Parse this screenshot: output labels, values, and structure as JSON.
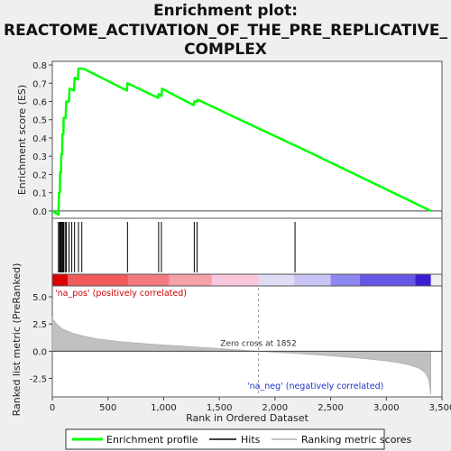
{
  "title_lines": [
    "Enrichment plot:",
    "REACTOME_ACTIVATION_OF_THE_PRE_REPLICATIVE_",
    "COMPLEX"
  ],
  "chart_data": {
    "type": "line",
    "x_max": 3400,
    "xlabel": "Rank in Ordered Dataset",
    "xticks": [
      0,
      500,
      1000,
      1500,
      2000,
      2500,
      3000,
      3500
    ],
    "xtick_labels": [
      "0",
      "500",
      "1,000",
      "1,500",
      "2,000",
      "2,500",
      "3,000",
      "3,500"
    ],
    "es_panel": {
      "ylabel": "Enrichment score (ES)",
      "ylim": [
        -0.04,
        0.82
      ],
      "yticks": [
        0.0,
        0.1,
        0.2,
        0.3,
        0.4,
        0.5,
        0.6,
        0.7,
        0.8
      ],
      "ytick_labels": [
        "0.0",
        "0.1",
        "0.2",
        "0.3",
        "0.4",
        "0.5",
        "0.6",
        "0.7",
        "0.8"
      ],
      "series_name": "Enrichment profile",
      "color": "#00ff00",
      "x": [
        0,
        55,
        60,
        68,
        70,
        78,
        80,
        88,
        90,
        100,
        102,
        120,
        125,
        150,
        155,
        195,
        200,
        230,
        235,
        275,
        280,
        670,
        675,
        950,
        955,
        980,
        985,
        1270,
        1275,
        1300,
        1305,
        2175,
        2180,
        3400
      ],
      "y": [
        0.0,
        -0.02,
        0.1,
        0.1,
        0.21,
        0.21,
        0.31,
        0.31,
        0.42,
        0.42,
        0.51,
        0.51,
        0.6,
        0.6,
        0.67,
        0.66,
        0.73,
        0.72,
        0.78,
        0.78,
        0.78,
        0.66,
        0.7,
        0.62,
        0.64,
        0.63,
        0.67,
        0.58,
        0.6,
        0.6,
        0.61,
        0.36,
        0.36,
        0.0
      ]
    },
    "hits": {
      "legend_name": "Hits",
      "positions": [
        55,
        65,
        72,
        80,
        88,
        95,
        102,
        115,
        125,
        150,
        175,
        200,
        235,
        265,
        675,
        955,
        980,
        1275,
        1300,
        2180
      ]
    },
    "metric_panel": {
      "ylabel": "Ranked list metric (PreRanked)",
      "ylim": [
        -4.2,
        6.0
      ],
      "yticks": [
        -2.5,
        0.0,
        2.5,
        5.0
      ],
      "ytick_labels": [
        "-2.5",
        "0.0",
        "2.5",
        "5.0"
      ],
      "legend_name": "Ranking metric scores",
      "fill_color": "#c0c0c0",
      "x": [
        0,
        10,
        30,
        60,
        100,
        150,
        200,
        300,
        400,
        600,
        800,
        1000,
        1200,
        1400,
        1600,
        1852,
        2000,
        2200,
        2400,
        2600,
        2800,
        3000,
        3100,
        3200,
        3300,
        3350,
        3380,
        3395,
        3400
      ],
      "y": [
        3.2,
        2.9,
        2.6,
        2.3,
        2.0,
        1.8,
        1.6,
        1.35,
        1.15,
        0.9,
        0.72,
        0.58,
        0.45,
        0.32,
        0.18,
        0.0,
        -0.1,
        -0.22,
        -0.35,
        -0.5,
        -0.68,
        -0.9,
        -1.05,
        -1.25,
        -1.6,
        -2.0,
        -2.6,
        -3.6,
        -4.0
      ]
    },
    "zero_cross": {
      "x": 1852,
      "label": "Zero cross at 1852"
    },
    "pos_label": "'na_pos' (positively correlated)",
    "neg_label": "'na_neg' (negatively correlated)",
    "color_bar": [
      {
        "from": 0,
        "to": 140,
        "color": "#dd0000"
      },
      {
        "from": 140,
        "to": 680,
        "color": "#f05a5a"
      },
      {
        "from": 680,
        "to": 1050,
        "color": "#f47a80"
      },
      {
        "from": 1050,
        "to": 1430,
        "color": "#f6a0a8"
      },
      {
        "from": 1430,
        "to": 1852,
        "color": "#fac8dc"
      },
      {
        "from": 1852,
        "to": 2170,
        "color": "#e0dcf4"
      },
      {
        "from": 2170,
        "to": 2500,
        "color": "#c8c4f4"
      },
      {
        "from": 2500,
        "to": 2760,
        "color": "#8c88f0"
      },
      {
        "from": 2760,
        "to": 3260,
        "color": "#6656e6"
      },
      {
        "from": 3260,
        "to": 3400,
        "color": "#3a1ed0"
      }
    ]
  }
}
